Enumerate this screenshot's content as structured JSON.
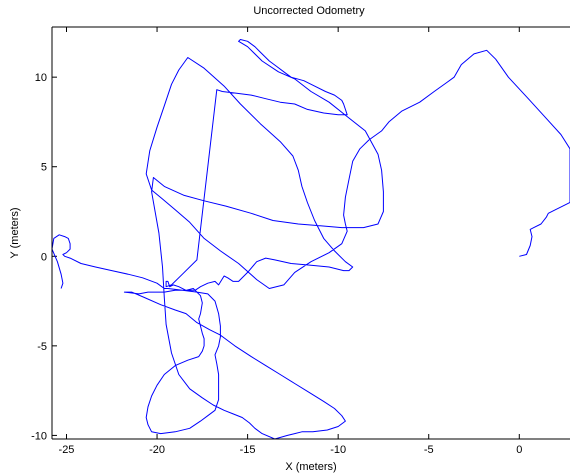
{
  "chart_data": {
    "type": "line",
    "title": "Uncorrected Odometry",
    "xlabel": "X (meters)",
    "ylabel": "Y (meters)",
    "xlim": [
      -25.8,
      2.8
    ],
    "ylim": [
      -10.2,
      12.8
    ],
    "xticks": [
      -25,
      -20,
      -15,
      -10,
      -5,
      0
    ],
    "yticks": [
      -10,
      -5,
      0,
      5,
      10
    ],
    "grid": false,
    "line_color": "#0000ff",
    "series": [
      {
        "x": [
          0.0,
          0.4,
          0.6,
          0.7,
          0.6,
          0.8,
          1.2,
          1.5,
          1.6,
          2.0,
          2.4,
          2.8,
          2.8,
          2.3,
          1.4,
          0.5,
          -0.6,
          -1.3,
          -1.8,
          -2.5,
          -3.2,
          -3.6,
          -4.0,
          -4.7,
          -5.5,
          -6.5,
          -7.2,
          -7.6,
          -8.3,
          -8.8,
          -9.2,
          -9.4,
          -9.6,
          -9.7,
          -9.6,
          -9.5,
          -9.8,
          -10.5,
          -11.5,
          -12.4,
          -13.0,
          -13.8,
          -14.5,
          -15.5,
          -16.5,
          -17.4,
          -18.2,
          -19.0,
          -19.7,
          -20.3,
          -20.6,
          -20.4,
          -20.0,
          -19.6,
          -19.2,
          -18.8,
          -18.3,
          -17.4,
          -16.3,
          -15.4,
          -14.3,
          -13.2,
          -12.5,
          -12.2,
          -12.0,
          -11.7,
          -11.3,
          -10.8,
          -10.2,
          -9.6,
          -9.2,
          -9.4,
          -9.7,
          -10.5,
          -11.5,
          -12.6,
          -13.5,
          -14.0,
          -14.5,
          -15.0,
          -15.5,
          -15.8,
          -16.1,
          -16.3,
          -16.6,
          -16.8,
          -17.2,
          -17.6,
          -17.9,
          -18.4,
          -19.0,
          -19.6,
          -20.0,
          -20.5,
          -21.0,
          -21.8,
          -21.4,
          -20.7,
          -19.8,
          -19.0,
          -18.4,
          -17.8,
          -17.1,
          -16.5,
          -15.7,
          -14.8,
          -14.0,
          -13.2,
          -12.4,
          -11.6,
          -10.8,
          -10.2,
          -9.8,
          -9.6,
          -10.0,
          -10.6,
          -11.4,
          -12.0,
          -12.4,
          -12.8,
          -13.5,
          -14.2,
          -14.6,
          -14.9,
          -15.3,
          -15.8,
          -16.3,
          -16.9,
          -17.5,
          -18.2,
          -18.8,
          -19.2,
          -19.5,
          -19.6,
          -19.7,
          -19.9,
          -20.3,
          -20.2,
          -19.6,
          -18.5,
          -17.4,
          -16.2,
          -14.8,
          -13.6,
          -12.2,
          -11.0,
          -9.8,
          -8.6,
          -7.8,
          -7.5,
          -7.5,
          -7.6,
          -7.8,
          -8.5,
          -9.5,
          -10.5,
          -11.5,
          -12.4,
          -13.3,
          -14.2,
          -15.0,
          -15.5,
          -15.4,
          -15.0,
          -14.6,
          -14.3,
          -13.8,
          -13.4,
          -13.0,
          -12.6,
          -11.9,
          -11.3,
          -10.7,
          -10.2,
          -9.8,
          -9.7,
          -9.6,
          -9.5,
          -10.0,
          -10.8,
          -11.7,
          -12.4,
          -13.2,
          -14.0,
          -14.8,
          -15.6,
          -16.4,
          -16.7,
          -17.8,
          -18.6,
          -19.2,
          -19.5,
          -19.5,
          -19.4,
          -19.3,
          -19.1,
          -18.8,
          -18.4,
          -18.0,
          -17.6,
          -17.5,
          -17.6,
          -17.7,
          -17.6,
          -17.5,
          -17.4,
          -17.4,
          -17.5,
          -17.7,
          -18.3,
          -19.0,
          -19.6,
          -20.0,
          -20.3,
          -20.5,
          -20.6,
          -20.5,
          -20.3,
          -19.8,
          -19.0,
          -18.2,
          -17.6,
          -17.2,
          -16.8,
          -16.6,
          -16.6,
          -16.6,
          -16.7,
          -16.8,
          -16.6,
          -16.5,
          -16.5,
          -16.6,
          -16.8,
          -17.2,
          -17.8,
          -18.6,
          -19.4,
          -19.6,
          -20.0,
          -20.8,
          -21.6,
          -22.5,
          -23.4,
          -24.2,
          -24.8,
          -25.1,
          -25.2,
          -25.0,
          -24.8,
          -24.8,
          -24.9,
          -25.1,
          -25.4,
          -25.7,
          -25.8,
          -25.5,
          -25.3,
          -25.2,
          -25.3
        ],
        "y": [
          0.0,
          0.1,
          0.6,
          1.1,
          1.5,
          1.6,
          1.8,
          2.2,
          2.4,
          2.6,
          2.8,
          3.0,
          6.0,
          6.8,
          7.8,
          8.8,
          10.0,
          11.0,
          11.5,
          11.3,
          10.7,
          10.0,
          9.7,
          9.2,
          8.6,
          8.1,
          7.5,
          7.0,
          6.5,
          6.0,
          5.3,
          4.3,
          3.3,
          2.3,
          1.8,
          1.4,
          0.7,
          0.2,
          -0.3,
          -0.9,
          -1.6,
          -1.8,
          -1.3,
          -0.4,
          0.3,
          1.0,
          1.9,
          2.6,
          3.2,
          3.7,
          4.6,
          5.9,
          7.2,
          8.4,
          9.6,
          10.4,
          11.1,
          10.5,
          9.5,
          8.5,
          7.4,
          6.4,
          5.6,
          4.8,
          3.9,
          3.0,
          2.0,
          1.0,
          0.3,
          -0.3,
          -0.6,
          -0.8,
          -0.8,
          -0.6,
          -0.5,
          -0.4,
          -0.2,
          -0.1,
          -0.3,
          -0.9,
          -1.4,
          -1.4,
          -1.2,
          -1.1,
          -1.6,
          -1.4,
          -1.5,
          -1.7,
          -1.9,
          -1.9,
          -1.9,
          -2.0,
          -2.0,
          -2.0,
          -2.1,
          -2.0,
          -2.0,
          -2.3,
          -2.7,
          -3.0,
          -3.2,
          -3.7,
          -4.1,
          -4.4,
          -5.0,
          -5.6,
          -6.1,
          -6.6,
          -7.1,
          -7.6,
          -8.1,
          -8.5,
          -8.9,
          -9.2,
          -9.5,
          -9.7,
          -9.8,
          -9.8,
          -9.9,
          -10.0,
          -10.2,
          -9.9,
          -9.6,
          -9.3,
          -9.0,
          -8.8,
          -8.6,
          -8.3,
          -7.9,
          -7.4,
          -6.6,
          -5.4,
          -3.8,
          -2.3,
          -0.6,
          1.3,
          3.6,
          4.4,
          3.9,
          3.4,
          3.1,
          2.8,
          2.4,
          2.0,
          1.8,
          1.7,
          1.6,
          1.6,
          1.8,
          2.5,
          3.6,
          4.8,
          5.7,
          7.0,
          7.8,
          8.6,
          9.2,
          9.9,
          10.3,
          10.9,
          11.7,
          12.0,
          12.1,
          12.0,
          11.7,
          11.4,
          10.9,
          10.6,
          10.3,
          10.0,
          9.8,
          9.5,
          9.2,
          9.0,
          8.7,
          8.5,
          8.2,
          7.9,
          7.9,
          8.0,
          8.2,
          8.5,
          8.6,
          8.8,
          9.0,
          9.1,
          9.2,
          9.3,
          -0.2,
          -1.0,
          -1.6,
          -1.7,
          -1.4,
          -1.4,
          -1.7,
          -1.6,
          -1.7,
          -1.9,
          -1.8,
          -2.2,
          -2.6,
          -3.2,
          -3.5,
          -3.9,
          -4.3,
          -4.6,
          -5.0,
          -5.3,
          -5.6,
          -5.8,
          -6.1,
          -6.6,
          -7.2,
          -7.8,
          -8.4,
          -9.0,
          -9.4,
          -9.8,
          -9.9,
          -9.8,
          -9.6,
          -9.2,
          -8.9,
          -8.6,
          -8.0,
          -7.3,
          -6.6,
          -6.0,
          -5.5,
          -5.0,
          -4.5,
          -3.9,
          -3.2,
          -2.5,
          -2.1,
          -2.0,
          -1.9,
          -1.8,
          -1.8,
          -1.5,
          -1.2,
          -1.0,
          -0.8,
          -0.6,
          -0.4,
          -0.1,
          0.0,
          0.1,
          0.2,
          0.4,
          0.7,
          1.0,
          1.1,
          1.2,
          1.0,
          0.4,
          -0.3,
          -1.0,
          -1.5,
          -1.8
        ]
      }
    ]
  }
}
